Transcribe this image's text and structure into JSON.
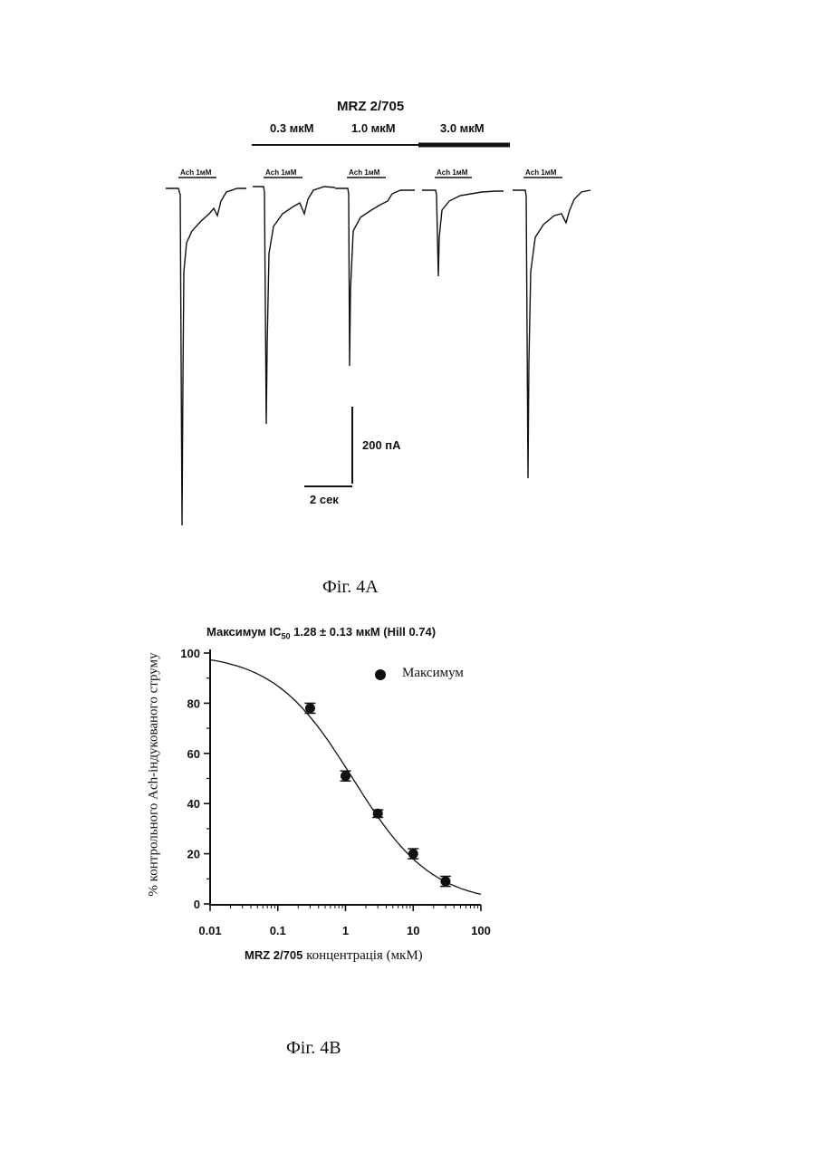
{
  "figure_a": {
    "compound": "MRZ 2/705",
    "concentrations": [
      "0.3 мкМ",
      "1.0 мкМ",
      "3.0 мкМ"
    ],
    "ach_labels": [
      "Ach 1мM",
      "Ach 1мM",
      "Ach 1мM",
      "Ach 1мM",
      "Ach 1мM"
    ],
    "scale_current": "200 пА",
    "scale_time": "2 сек",
    "caption": "Фіг. 4А"
  },
  "figure_b": {
    "title": "Максимум IC",
    "title_sub": "50",
    "title_rest": " 1.28 ± 0.13 мкМ (Hill 0.74)",
    "legend_label": "Максимум",
    "ylabel": "% контрольного Ach-індукованого струму",
    "xlabel_part1": "MRZ 2/705",
    "xlabel_part2": " концентрація (мкМ)",
    "caption": "Фіг. 4В"
  },
  "chart_data": {
    "type": "scatter",
    "xscale": "log",
    "xlim": [
      0.01,
      100
    ],
    "ylim": [
      0,
      100
    ],
    "xticks": [
      "0.01",
      "0.1",
      "1",
      "10",
      "100"
    ],
    "yticks": [
      "0",
      "20",
      "40",
      "60",
      "80",
      "100"
    ],
    "series": [
      {
        "name": "Максимум",
        "x": [
          0.3,
          1,
          3,
          10,
          30
        ],
        "y": [
          78,
          51,
          36,
          20,
          9
        ],
        "err": [
          2,
          2,
          1.5,
          2,
          2
        ]
      }
    ],
    "fit": {
      "ic50": 1.28,
      "hill": 0.74,
      "top": 100,
      "bottom": 0
    }
  }
}
